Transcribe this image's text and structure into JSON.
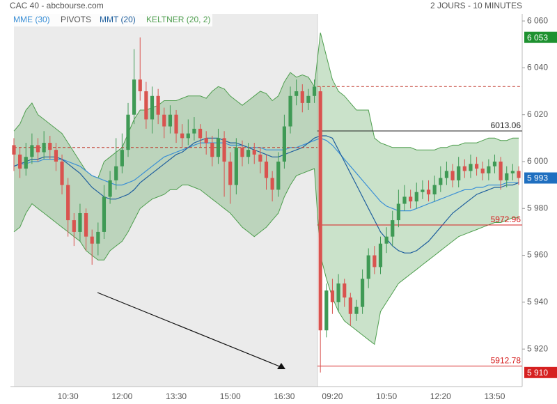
{
  "chart_data": {
    "type": "candlestick",
    "title": "CAC 40 - abcbourse.com",
    "subtitle": "2 JOURS - 10 MINUTES",
    "categories": [
      null,
      null,
      null,
      null,
      null,
      null,
      null,
      null,
      null,
      "10:30",
      null,
      null,
      null,
      null,
      null,
      null,
      null,
      null,
      "12:00",
      null,
      null,
      null,
      null,
      null,
      null,
      null,
      null,
      "13:30",
      null,
      null,
      null,
      null,
      null,
      null,
      null,
      null,
      "15:00",
      null,
      null,
      null,
      null,
      null,
      null,
      null,
      null,
      "16:30",
      null,
      null,
      null,
      null,
      null,
      null,
      null,
      "09:20",
      null,
      null,
      null,
      null,
      null,
      null,
      null,
      null,
      "10:50",
      null,
      null,
      null,
      null,
      null,
      null,
      null,
      null,
      "12:20",
      null,
      null,
      null,
      null,
      null,
      null,
      null,
      null,
      "13:50",
      null,
      null,
      null,
      null
    ],
    "open": [
      6007,
      6003,
      5997,
      6002,
      6007,
      6004,
      6008,
      6005,
      6000,
      5990,
      5975,
      5970,
      5978,
      5968,
      5965,
      5970,
      5985,
      5992,
      5998,
      6005,
      6020,
      6035,
      6030,
      6018,
      6028,
      6020,
      6015,
      6020,
      6012,
      6010,
      6012,
      6014,
      6010,
      6008,
      6002,
      6010,
      6000,
      5990,
      6006,
      6002,
      6005,
      6003,
      6000,
      5993,
      5988,
      6000,
      6015,
      6028,
      6030,
      6025,
      6028,
      6030,
      5928,
      5945,
      5940,
      5948,
      5942,
      5935,
      5938,
      5950,
      5960,
      5955,
      5965,
      5968,
      5975,
      5982,
      5985,
      5983,
      5987,
      5988,
      5986,
      5990,
      5993,
      5996,
      5992,
      5998,
      5996,
      5999,
      5997,
      5995,
      5998,
      6000,
      5992,
      5995,
      5996
    ],
    "high": [
      6010,
      6006,
      6008,
      6012,
      6010,
      6013,
      6011,
      6008,
      6003,
      5993,
      5978,
      5982,
      5980,
      5971,
      5974,
      5990,
      5996,
      6010,
      6012,
      6025,
      6048,
      6053,
      6034,
      6032,
      6031,
      6023,
      6024,
      6022,
      6016,
      6018,
      6019,
      6016,
      6013,
      6011,
      6014,
      6013,
      6004,
      6010,
      6009,
      6008,
      6008,
      6006,
      6003,
      5996,
      6004,
      6020,
      6032,
      6035,
      6033,
      6031,
      6035,
      6032,
      5948,
      5950,
      5952,
      5950,
      5944,
      5941,
      5954,
      5963,
      5964,
      5968,
      5972,
      5979,
      5988,
      5990,
      5988,
      5991,
      5992,
      5992,
      5994,
      5998,
      6000,
      5999,
      6002,
      6001,
      6003,
      6002,
      6000,
      6001,
      6003,
      6002,
      5998,
      5999,
      5998
    ],
    "low": [
      5996,
      5993,
      5994,
      5999,
      6000,
      6001,
      6001,
      5996,
      5986,
      5968,
      5964,
      5966,
      5962,
      5956,
      5960,
      5967,
      5982,
      5988,
      5995,
      6002,
      6016,
      6026,
      6014,
      6012,
      6016,
      6010,
      6012,
      6008,
      6006,
      6007,
      6009,
      6006,
      6003,
      5998,
      5999,
      5985,
      5982,
      5986,
      5998,
      5999,
      5999,
      5995,
      5988,
      5983,
      5985,
      5997,
      6012,
      6024,
      6021,
      6022,
      6025,
      5910,
      5925,
      5935,
      5936,
      5938,
      5930,
      5932,
      5935,
      5946,
      5952,
      5952,
      5961,
      5964,
      5972,
      5979,
      5980,
      5980,
      5984,
      5983,
      5983,
      5987,
      5990,
      5989,
      5989,
      5993,
      5993,
      5994,
      5992,
      5992,
      5995,
      5988,
      5989,
      5992,
      5990
    ],
    "close": [
      6003,
      5997,
      6002,
      6007,
      6004,
      6008,
      6005,
      6000,
      5990,
      5975,
      5970,
      5978,
      5968,
      5965,
      5970,
      5985,
      5992,
      5998,
      6005,
      6020,
      6035,
      6030,
      6018,
      6028,
      6020,
      6015,
      6020,
      6012,
      6010,
      6012,
      6014,
      6010,
      6008,
      6002,
      6010,
      6000,
      5990,
      6006,
      6002,
      6005,
      6003,
      6000,
      5993,
      5988,
      6000,
      6015,
      6028,
      6030,
      6025,
      6028,
      6032,
      5928,
      5945,
      5940,
      5948,
      5942,
      5935,
      5938,
      5950,
      5960,
      5955,
      5965,
      5968,
      5975,
      5982,
      5985,
      5983,
      5987,
      5988,
      5986,
      5990,
      5993,
      5996,
      5992,
      5998,
      5996,
      5999,
      5997,
      5995,
      5998,
      6000,
      5992,
      5995,
      5996,
      5993
    ],
    "up_color": "#3f9a55",
    "down_color": "#d9534f",
    "series": [
      {
        "name": "MME (30)",
        "color": "#3a8fd6",
        "values": [
          5998,
          5999,
          5999,
          6000,
          6000,
          6001,
          6001,
          6001,
          6001,
          6000,
          5999,
          5998,
          5996,
          5994,
          5993,
          5992,
          5991,
          5990,
          5990,
          5991,
          5992,
          5994,
          5996,
          5998,
          6000,
          6002,
          6003,
          6004,
          6005,
          6006,
          6007,
          6008,
          6008,
          6008,
          6008,
          6008,
          6007,
          6007,
          6007,
          6006,
          6006,
          6006,
          6005,
          6005,
          6005,
          6005,
          6006,
          6006,
          6007,
          6008,
          6009,
          6010,
          6009,
          6007,
          6004,
          6001,
          5998,
          5995,
          5992,
          5989,
          5986,
          5983,
          5981,
          5980,
          5979,
          5979,
          5979,
          5980,
          5981,
          5982,
          5983,
          5984,
          5985,
          5986,
          5987,
          5988,
          5988,
          5989,
          5989,
          5990,
          5990,
          5990,
          5991,
          5991,
          5991
        ]
      },
      {
        "name": "MMT (20)",
        "color": "#1f5f9e",
        "values": [
          5998,
          5999,
          6000,
          6001,
          6001,
          6002,
          6002,
          6002,
          6001,
          5999,
          5997,
          5995,
          5992,
          5989,
          5987,
          5985,
          5984,
          5984,
          5985,
          5986,
          5988,
          5991,
          5993,
          5995,
          5997,
          5999,
          6001,
          6003,
          6004,
          6006,
          6008,
          6009,
          6010,
          6010,
          6010,
          6009,
          6008,
          6008,
          6007,
          6006,
          6005,
          6004,
          6003,
          6002,
          6002,
          6003,
          6004,
          6005,
          6006,
          6008,
          6010,
          6011,
          6011,
          6010,
          6005,
          6000,
          5995,
          5990,
          5985,
          5980,
          5975,
          5970,
          5967,
          5964,
          5962,
          5961,
          5961,
          5962,
          5964,
          5966,
          5969,
          5972,
          5975,
          5978,
          5980,
          5982,
          5984,
          5986,
          5987,
          5988,
          5989,
          5989,
          5990,
          5990,
          5991
        ]
      },
      {
        "name": "KELTNER (20, 2)",
        "color": "#4e9e4e",
        "upper": [
          6013,
          6016,
          6022,
          6025,
          6020,
          6018,
          6016,
          6014,
          6012,
          6008,
          6004,
          6000,
          5996,
          5994,
          5993,
          6000,
          6002,
          6004,
          6006,
          6012,
          6018,
          6022,
          6022,
          6023,
          6024,
          6026,
          6026,
          6026,
          6027,
          6028,
          6028,
          6028,
          6027,
          6030,
          6032,
          6031,
          6028,
          6026,
          6024,
          6026,
          6028,
          6030,
          6029,
          6026,
          6028,
          6034,
          6038,
          6036,
          6037,
          6036,
          6032,
          6055,
          6045,
          6035,
          6030,
          6028,
          6025,
          6022,
          6022,
          6022,
          6010,
          6008,
          6007,
          6006,
          6006,
          6006,
          6006,
          6005,
          6005,
          6005,
          6005,
          6006,
          6006,
          6007,
          6007,
          6008,
          6008,
          6008,
          6009,
          6010,
          6010,
          6009,
          6009,
          6010,
          6010
        ],
        "lower": [
          5970,
          5972,
          5978,
          5982,
          5980,
          5978,
          5976,
          5974,
          5972,
          5970,
          5968,
          5966,
          5962,
          5960,
          5958,
          5958,
          5962,
          5964,
          5966,
          5970,
          5975,
          5980,
          5982,
          5984,
          5985,
          5986,
          5988,
          5988,
          5990,
          5990,
          5989,
          5988,
          5986,
          5984,
          5982,
          5980,
          5978,
          5975,
          5972,
          5970,
          5968,
          5970,
          5972,
          5975,
          5978,
          5985,
          5990,
          5994,
          5995,
          5996,
          5997,
          5960,
          5950,
          5942,
          5936,
          5932,
          5930,
          5928,
          5926,
          5924,
          5922,
          5936,
          5940,
          5944,
          5948,
          5950,
          5952,
          5954,
          5956,
          5958,
          5960,
          5962,
          5964,
          5966,
          5968,
          5969,
          5970,
          5971,
          5972,
          5973,
          5974,
          5974,
          5975,
          5976,
          5976
        ]
      }
    ],
    "pivots": {
      "name": "PIVOTS",
      "color": "#c0392b",
      "values": [
        6006,
        6032
      ]
    },
    "levels": [
      6013.06,
      5972.96,
      5912.78
    ],
    "level_colors": [
      "#222222",
      "#d62020",
      "#d62020"
    ],
    "price_tags": [
      {
        "value": 6053,
        "label": "6 053",
        "color": "#1e9130"
      },
      {
        "value": 5993,
        "label": "5 993",
        "color": "#1f6fc0"
      },
      {
        "value": 5910,
        "label": "5 910",
        "color": "#d62020"
      }
    ],
    "ylim": [
      5904,
      6063
    ],
    "yticks": [
      {
        "value": 5920,
        "label": "5 920"
      },
      {
        "value": 5940,
        "label": "5 940"
      },
      {
        "value": 5960,
        "label": "5 960"
      },
      {
        "value": 5980,
        "label": "5 980"
      },
      {
        "value": 6000,
        "label": "6 000"
      },
      {
        "value": 6020,
        "label": "6 020"
      },
      {
        "value": 6040,
        "label": "6 040"
      },
      {
        "value": 6060,
        "label": "6 060"
      }
    ],
    "session_split": 51
  }
}
